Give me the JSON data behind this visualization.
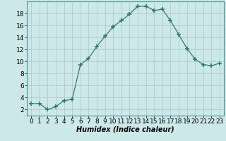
{
  "x": [
    0,
    1,
    2,
    3,
    4,
    5,
    6,
    7,
    8,
    9,
    10,
    11,
    12,
    13,
    14,
    15,
    16,
    17,
    18,
    19,
    20,
    21,
    22,
    23
  ],
  "y": [
    3,
    3,
    2,
    2.5,
    3.5,
    3.7,
    9.5,
    10.5,
    12.5,
    14.2,
    15.8,
    16.8,
    17.9,
    19.2,
    19.2,
    18.5,
    18.7,
    16.8,
    14.5,
    12.2,
    10.4,
    9.5,
    9.3,
    9.7
  ],
  "line_color": "#2d7d6e",
  "marker": "+",
  "marker_size": 4,
  "bg_color": "#cce8e8",
  "grid_color": "#b0cccc",
  "xlabel": "Humidex (Indice chaleur)",
  "xlim": [
    -0.5,
    23.5
  ],
  "ylim": [
    1,
    20
  ],
  "yticks": [
    2,
    4,
    6,
    8,
    10,
    12,
    14,
    16,
    18
  ],
  "xticks": [
    0,
    1,
    2,
    3,
    4,
    5,
    6,
    7,
    8,
    9,
    10,
    11,
    12,
    13,
    14,
    15,
    16,
    17,
    18,
    19,
    20,
    21,
    22,
    23
  ],
  "xlabel_fontsize": 7,
  "tick_fontsize": 6.5
}
